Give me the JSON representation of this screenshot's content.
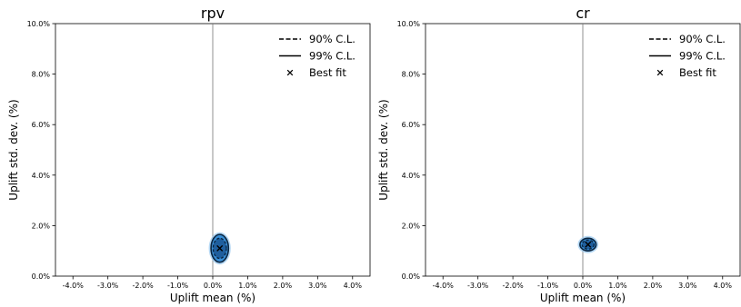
{
  "chart_data": [
    {
      "type": "contour",
      "title": "rpv",
      "xlabel": "Uplift mean (%)",
      "ylabel": "Uplift std. dev. (%)",
      "xlim": [
        -4.5,
        4.5
      ],
      "ylim": [
        0,
        10
      ],
      "xticks": [
        -4,
        -3,
        -2,
        -1,
        0,
        1,
        2,
        3,
        4
      ],
      "xtick_labels": [
        "-4.0%",
        "-3.0%",
        "-2.0%",
        "-1.0%",
        "0.0%",
        "1.0%",
        "2.0%",
        "3.0%",
        "4.0%"
      ],
      "yticks": [
        0,
        2,
        4,
        6,
        8,
        10
      ],
      "ytick_labels": [
        "0.0%",
        "2.0%",
        "4.0%",
        "6.0%",
        "8.0%",
        "10.0%"
      ],
      "vline_x": 0,
      "best_fit": {
        "x": 0.2,
        "y": 1.1
      },
      "cl90": {
        "cx": 0.2,
        "cy": 1.1,
        "rx": 0.19,
        "ry": 0.4
      },
      "cl99": {
        "cx": 0.2,
        "cy": 1.1,
        "rx": 0.25,
        "ry": 0.55
      },
      "legend": [
        "90% C.L.",
        "99% C.L.",
        "Best fit"
      ],
      "legend_position": "top-right",
      "grid": false
    },
    {
      "type": "contour",
      "title": "cr",
      "xlabel": "Uplift mean (%)",
      "ylabel": "Uplift std. dev. (%)",
      "xlim": [
        -4.5,
        4.5
      ],
      "ylim": [
        0,
        10
      ],
      "xticks": [
        -4,
        -3,
        -2,
        -1,
        0,
        1,
        2,
        3,
        4
      ],
      "xtick_labels": [
        "-4.0%",
        "-3.0%",
        "-2.0%",
        "-1.0%",
        "0.0%",
        "1.0%",
        "2.0%",
        "3.0%",
        "4.0%"
      ],
      "yticks": [
        0,
        2,
        4,
        6,
        8,
        10
      ],
      "ytick_labels": [
        "0.0%",
        "2.0%",
        "4.0%",
        "6.0%",
        "8.0%",
        "10.0%"
      ],
      "vline_x": 0,
      "best_fit": {
        "x": 0.15,
        "y": 1.25
      },
      "cl90": {
        "cx": 0.15,
        "cy": 1.25,
        "rx": 0.17,
        "ry": 0.18
      },
      "cl99": {
        "cx": 0.15,
        "cy": 1.25,
        "rx": 0.23,
        "ry": 0.25
      },
      "legend": [
        "90% C.L.",
        "99% C.L.",
        "Best fit"
      ],
      "legend_position": "top-right",
      "grid": false
    }
  ]
}
